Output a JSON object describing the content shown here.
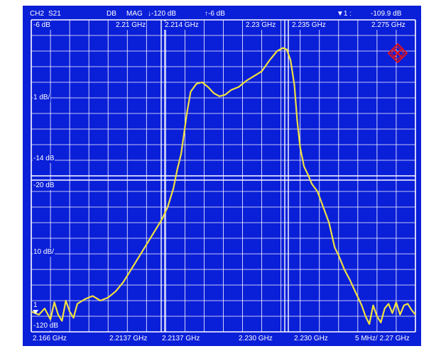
{
  "status": {
    "channel": "CH2",
    "parameter": "S21",
    "format": "DB",
    "mode": "MAG",
    "bottom_ref": "↓-120  dB",
    "top_ref": "↑-6  dB",
    "marker_label": "▼1 :",
    "marker_value": "-109.9  dB"
  },
  "left_scale": {
    "top": "-6  dB",
    "div1": "1  dB/",
    "ref1": "-14  dB",
    "ref2": "-20  dB",
    "div2": "10  dB/",
    "marker_num": "1",
    "bottom": "-120  dB"
  },
  "top_freqs": {
    "f1": "2.21  GHz",
    "f2": "2.214  GHz",
    "f3": "2.23  GHz",
    "f4": "2.235  GHz",
    "f5": "2.275  GHz"
  },
  "bottom_freqs": {
    "f1": "2.166  GHz",
    "f2": "2.2137  GHz",
    "f3": "2.2137  GHz",
    "f4": "2.230  GHz",
    "f5": "2.230  GHz",
    "f6": "5  MHz/  2.27  GHz"
  },
  "colors": {
    "screen_bg": "#0a1fd8",
    "grid": "#ffffff",
    "trace": "#f0e040",
    "logo": "#e0101c"
  },
  "logo": {
    "icon": "rohde-schwarz-logo-icon"
  },
  "chart_data": {
    "type": "line",
    "xlim": [
      0,
      10
    ],
    "ylim": [
      0,
      10
    ],
    "series": [
      {
        "values": [
          [
            0.0,
            0.65
          ],
          [
            0.2,
            0.55
          ],
          [
            0.35,
            0.75
          ],
          [
            0.5,
            0.4
          ],
          [
            0.6,
            0.95
          ],
          [
            0.7,
            0.55
          ],
          [
            0.8,
            0.35
          ],
          [
            0.9,
            1.0
          ],
          [
            1.0,
            0.65
          ],
          [
            1.1,
            0.45
          ],
          [
            1.2,
            0.9
          ],
          [
            1.4,
            1.05
          ],
          [
            1.6,
            1.15
          ],
          [
            1.8,
            1.0
          ],
          [
            2.0,
            1.1
          ],
          [
            2.2,
            1.3
          ],
          [
            2.4,
            1.6
          ],
          [
            2.6,
            2.0
          ],
          [
            2.8,
            2.4
          ],
          [
            3.0,
            2.8
          ],
          [
            3.2,
            3.2
          ],
          [
            3.4,
            3.6
          ],
          [
            3.55,
            4.0
          ],
          [
            3.7,
            4.6
          ],
          [
            3.8,
            5.2
          ],
          [
            3.9,
            5.7
          ],
          [
            3.97,
            6.3
          ],
          [
            4.05,
            7.0
          ],
          [
            4.15,
            7.7
          ],
          [
            4.3,
            7.95
          ],
          [
            4.45,
            8.0
          ],
          [
            4.6,
            7.85
          ],
          [
            4.75,
            7.65
          ],
          [
            4.9,
            7.55
          ],
          [
            5.05,
            7.6
          ],
          [
            5.2,
            7.75
          ],
          [
            5.4,
            7.85
          ],
          [
            5.6,
            8.05
          ],
          [
            5.8,
            8.2
          ],
          [
            6.0,
            8.35
          ],
          [
            6.2,
            8.7
          ],
          [
            6.4,
            9.0
          ],
          [
            6.55,
            9.1
          ],
          [
            6.65,
            9.05
          ],
          [
            6.75,
            8.7
          ],
          [
            6.85,
            7.9
          ],
          [
            6.92,
            6.8
          ],
          [
            7.0,
            5.9
          ],
          [
            7.1,
            5.3
          ],
          [
            7.2,
            5.05
          ],
          [
            7.3,
            4.75
          ],
          [
            7.45,
            4.5
          ],
          [
            7.6,
            4.0
          ],
          [
            7.75,
            3.5
          ],
          [
            7.9,
            2.7
          ],
          [
            8.0,
            2.45
          ],
          [
            8.15,
            2.0
          ],
          [
            8.3,
            1.65
          ],
          [
            8.45,
            1.25
          ],
          [
            8.6,
            0.85
          ],
          [
            8.7,
            0.5
          ],
          [
            8.8,
            0.25
          ],
          [
            8.9,
            0.85
          ],
          [
            9.0,
            0.5
          ],
          [
            9.1,
            0.3
          ],
          [
            9.2,
            0.75
          ],
          [
            9.3,
            0.9
          ],
          [
            9.4,
            0.6
          ],
          [
            9.5,
            0.95
          ],
          [
            9.6,
            0.55
          ],
          [
            9.7,
            0.85
          ],
          [
            9.8,
            0.9
          ],
          [
            9.9,
            0.7
          ],
          [
            10.0,
            0.55
          ]
        ]
      }
    ]
  }
}
